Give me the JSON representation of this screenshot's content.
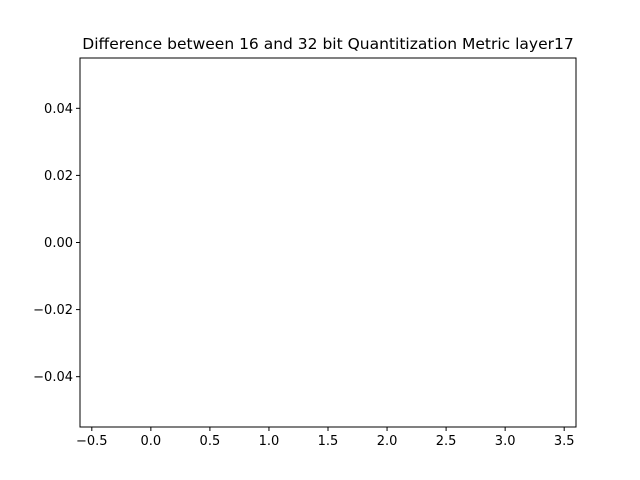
{
  "chart_data": {
    "type": "line",
    "title": "Difference between 16 and 32 bit Quantitization Metric layer17",
    "xlabel": "",
    "ylabel": "",
    "series": [],
    "xlim": [
      -0.6,
      3.6
    ],
    "ylim": [
      -0.055,
      0.055
    ],
    "xticks": [
      -0.5,
      0.0,
      0.5,
      1.0,
      1.5,
      2.0,
      2.5,
      3.0,
      3.5
    ],
    "xtick_labels": [
      "−0.5",
      "0.0",
      "0.5",
      "1.0",
      "1.5",
      "2.0",
      "2.5",
      "3.0",
      "3.5"
    ],
    "yticks": [
      0.04,
      0.02,
      0.0,
      -0.02,
      -0.04
    ],
    "ytick_labels": [
      "0.04",
      "0.02",
      "0.00",
      "−0.02",
      "−0.04"
    ],
    "grid": false,
    "legend": "none"
  }
}
